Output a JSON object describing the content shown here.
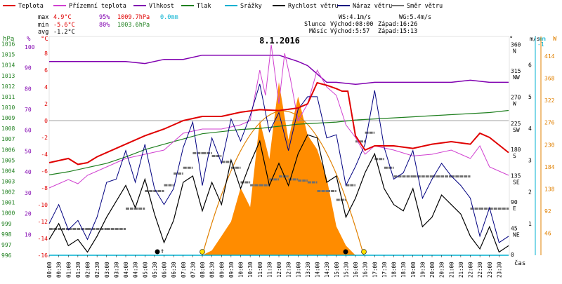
{
  "legend": [
    {
      "label": "Teplota",
      "color": "#e00000"
    },
    {
      "label": "Přízemní teplota",
      "color": "#d040d0"
    },
    {
      "label": "Vlhkost",
      "color": "#8000b0"
    },
    {
      "label": "Tlak",
      "color": "#208020"
    },
    {
      "label": "Srážky",
      "color": "#00b0d0"
    },
    {
      "label": "Rychlost větru",
      "color": "#000000"
    },
    {
      "label": "Náraz větru",
      "color": "#000080"
    },
    {
      "label": "Směr větru",
      "color": "#707070"
    }
  ],
  "stats": {
    "max_label": "max",
    "max_temp": "4.9°C",
    "max_hum": "95%",
    "max_press": "1009.7hPa",
    "max_rain": "0.0mm",
    "min_label": "min",
    "min_temp": "-5.6°C",
    "min_hum": "80%",
    "min_press": "1003.6hPa",
    "avg_label": "avg",
    "avg_temp": "-1.2°C"
  },
  "wind_info": {
    "ws": "WS:4.1m/s",
    "wg": "WG:5.4m/s"
  },
  "sun": {
    "label": "Slunce",
    "rise": "Východ:08:00",
    "set": "Západ:16:26"
  },
  "moon": {
    "label": "Měsíc",
    "rise": "Východ:5:57",
    "set": "Západ:15:13"
  },
  "date": "8.1.2016",
  "axes": {
    "hpa_unit": "hPa",
    "pct_unit": "%",
    "c_unit": "°C",
    "deg_unit": "°",
    "ms_unit": "m/s",
    "mm_unit": "mm",
    "w_unit": "W",
    "time_label": "čas",
    "hpa_ticks": [
      "1016",
      "1015",
      "1014",
      "1013",
      "1012",
      "1011",
      "1010",
      "1009",
      "1008",
      "1007",
      "1006",
      "1005",
      "1004",
      "1003",
      "1002",
      "1001",
      "1000",
      "999",
      "998",
      "997",
      "996"
    ],
    "pct_ticks": [
      "100",
      "90",
      "80",
      "70",
      "60",
      "50",
      "40",
      "30",
      "20",
      "10"
    ],
    "c_ticks": [
      "8",
      "6",
      "4",
      "2",
      "0",
      "-2",
      "-4",
      "-6",
      "-8",
      "-10",
      "-12",
      "-14",
      "-16"
    ],
    "deg_ticks": [
      {
        "deg": "360",
        "dir": "N"
      },
      {
        "deg": "315",
        "dir": "NW"
      },
      {
        "deg": "270",
        "dir": "W"
      },
      {
        "deg": "225",
        "dir": "SW"
      },
      {
        "deg": "180",
        "dir": "S"
      },
      {
        "deg": "135",
        "dir": "SE"
      },
      {
        "deg": "90",
        "dir": "E"
      },
      {
        "deg": "45",
        "dir": "NE"
      },
      {
        "deg": "0",
        "dir": ""
      }
    ],
    "ms_ticks": [
      "6",
      "5",
      "4",
      "3",
      "2",
      "1"
    ],
    "w_ticks": [
      "414",
      "368",
      "322",
      "276",
      "230",
      "184",
      "138",
      "92",
      "46"
    ],
    "rain_top": "-1",
    "time_ticks": [
      "00:00",
      "00:30",
      "01:00",
      "01:30",
      "02:00",
      "02:30",
      "03:00",
      "03:30",
      "04:00",
      "04:30",
      "05:00",
      "05:30",
      "06:00",
      "06:30",
      "07:00",
      "07:30",
      "08:00",
      "08:30",
      "09:00",
      "09:30",
      "10:00",
      "10:30",
      "11:00",
      "11:30",
      "12:00",
      "12:30",
      "13:00",
      "13:30",
      "14:00",
      "14:30",
      "15:00",
      "15:30",
      "16:00",
      "16:30",
      "17:00",
      "17:30",
      "18:00",
      "18:30",
      "19:00",
      "19:30",
      "20:00",
      "20:30",
      "21:00",
      "21:30",
      "22:00",
      "22:30",
      "23:00",
      "23:30"
    ]
  },
  "chart_data": {
    "type": "line",
    "title": "8.1.2016",
    "x_unit": "hours",
    "series": [
      {
        "name": "Teplota",
        "unit": "°C",
        "x": [
          0,
          1,
          1.5,
          2,
          2.5,
          3,
          4,
          5,
          6,
          7,
          8,
          9,
          10,
          11,
          12,
          13,
          13.5,
          14,
          14.5,
          15,
          15.3,
          15.6,
          16,
          16.5,
          17,
          18,
          19,
          20,
          21,
          22,
          22.5,
          23,
          24
        ],
        "values": [
          -5,
          -4.5,
          -5.2,
          -5,
          -4.3,
          -3.8,
          -2.8,
          -1.8,
          -1,
          0,
          0.5,
          0.5,
          1,
          1.3,
          1.2,
          1.5,
          2,
          4.5,
          4.2,
          3.8,
          3.5,
          3.5,
          -1.8,
          -3.5,
          -3,
          -3,
          -3.3,
          -2.8,
          -2.5,
          -2.8,
          -1.5,
          -2,
          -3.8
        ]
      },
      {
        "name": "Přízemní teplota",
        "unit": "°C",
        "x": [
          0,
          1,
          1.5,
          2,
          3,
          4,
          5,
          6,
          6.5,
          7,
          8,
          9,
          10,
          10.5,
          11,
          11.3,
          11.6,
          12,
          12.3,
          12.6,
          13,
          13.5,
          14,
          14.5,
          15,
          15.5,
          16,
          16.5,
          17,
          18,
          19,
          20,
          21,
          22,
          22.5,
          23,
          24
        ],
        "values": [
          -8,
          -7,
          -7.5,
          -6.5,
          -5.5,
          -4.5,
          -4,
          -3.5,
          -2.5,
          -1.5,
          -1,
          -1,
          -0.5,
          0,
          6,
          3,
          9,
          2,
          8,
          5,
          0,
          2,
          6,
          4,
          3,
          -0.5,
          -2,
          -4,
          -3,
          -3.5,
          -4.2,
          -4,
          -3.5,
          -4.5,
          -3,
          -5.5,
          -6.5
        ]
      },
      {
        "name": "Vlhkost",
        "unit": "%",
        "x": [
          0,
          1,
          2,
          3,
          4,
          5,
          6,
          7,
          8,
          9,
          10,
          11,
          12,
          13,
          13.5,
          14,
          14.5,
          15,
          16,
          17,
          18,
          19,
          20,
          21,
          22,
          23,
          24
        ],
        "values": [
          93,
          93,
          93,
          93,
          93,
          92,
          94,
          94,
          96,
          96,
          96,
          96,
          96,
          93,
          91,
          87,
          83,
          83,
          82,
          83,
          83,
          83,
          83,
          83,
          84,
          83,
          83
        ]
      },
      {
        "name": "Tlak",
        "unit": "hPa",
        "x": [
          0,
          1,
          2,
          3,
          4,
          5,
          6,
          7,
          8,
          9,
          10,
          11,
          12,
          13,
          14,
          15,
          16,
          17,
          18,
          19,
          20,
          21,
          22,
          23,
          24
        ],
        "values": [
          1003.6,
          1003.9,
          1004.3,
          1004.7,
          1005.3,
          1006,
          1006.5,
          1007,
          1007.5,
          1007.7,
          1007.9,
          1008,
          1008.2,
          1008.4,
          1008.5,
          1008.6,
          1008.8,
          1008.9,
          1009,
          1009.1,
          1009.2,
          1009.3,
          1009.4,
          1009.5,
          1009.7
        ]
      },
      {
        "name": "Rychlost větru",
        "unit": "m/s",
        "x": [
          0,
          0.5,
          1,
          1.5,
          2,
          2.5,
          3,
          3.5,
          4,
          4.5,
          5,
          5.5,
          6,
          6.5,
          7,
          7.5,
          8,
          8.5,
          9,
          9.5,
          10,
          10.5,
          11,
          11.5,
          12,
          12.5,
          13,
          13.5,
          14,
          14.5,
          15,
          15.5,
          16,
          16.5,
          17,
          17.5,
          18,
          18.5,
          19,
          19.5,
          20,
          20.5,
          21,
          21.5,
          22,
          22.5,
          23,
          23.5,
          24
        ],
        "values": [
          0.5,
          1,
          0.3,
          0.5,
          0.1,
          0.6,
          1.2,
          1.7,
          2.2,
          1.5,
          2.4,
          1.3,
          0.4,
          1.1,
          2.3,
          2.5,
          1.4,
          2.3,
          1.6,
          3,
          2.1,
          2.9,
          3.6,
          2.2,
          2.9,
          2.2,
          3.2,
          3.8,
          3.7,
          2.3,
          2.5,
          1.2,
          1.8,
          2.6,
          3.2,
          2.1,
          1.6,
          1.4,
          2.1,
          0.9,
          1.2,
          1.9,
          1.6,
          1.3,
          0.6,
          0.2,
          0.9,
          0.1,
          0.3
        ]
      },
      {
        "name": "Náraz větru",
        "unit": "m/s",
        "x": [
          0,
          0.5,
          1,
          1.5,
          2,
          2.5,
          3,
          3.5,
          4,
          4.5,
          5,
          5.5,
          6,
          6.5,
          7,
          7.5,
          8,
          8.5,
          9,
          9.5,
          10,
          10.5,
          11,
          11.5,
          12,
          12.5,
          13,
          13.5,
          14,
          14.5,
          15,
          15.5,
          16,
          16.5,
          17,
          17.5,
          18,
          18.5,
          19,
          19.5,
          20,
          20.5,
          21,
          21.5,
          22,
          22.5,
          23,
          23.5,
          24
        ],
        "values": [
          1,
          1.6,
          0.8,
          1.1,
          0.5,
          1.2,
          2.3,
          2.4,
          3.3,
          2.3,
          3.5,
          2.1,
          1.6,
          2.1,
          3.4,
          4.2,
          2.2,
          3.7,
          2.9,
          4.3,
          3.6,
          4.4,
          5.4,
          3.9,
          4.5,
          3.3,
          4.6,
          5,
          5,
          3.7,
          3.8,
          2.2,
          2.8,
          3.5,
          5.2,
          3.4,
          2.4,
          2.6,
          3.3,
          1.8,
          2.4,
          2.9,
          2.5,
          2.2,
          1.8,
          0.6,
          1.5,
          0.4,
          0.6
        ]
      },
      {
        "name": "Směr větru",
        "unit": "°",
        "x": [
          0,
          1,
          2,
          3,
          4,
          5,
          6,
          6.5,
          7,
          7.5,
          8,
          8.5,
          9,
          9.5,
          10,
          10.5,
          11,
          11.5,
          12,
          12.5,
          13,
          13.5,
          14,
          14.5,
          15,
          15.5,
          16,
          16.5,
          17,
          17.5,
          18,
          19,
          20,
          21,
          22,
          22.5,
          23,
          24
        ],
        "values": [
          45,
          45,
          45,
          45,
          80,
          110,
          120,
          140,
          150,
          175,
          175,
          170,
          160,
          150,
          125,
          120,
          120,
          130,
          135,
          130,
          128,
          125,
          110,
          110,
          95,
          120,
          195,
          210,
          165,
          150,
          135,
          135,
          135,
          135,
          80,
          80,
          80,
          80
        ]
      },
      {
        "name": "Sluneční záření",
        "unit": "W",
        "x": [
          8,
          8.5,
          9,
          9.5,
          10,
          10.5,
          11,
          11.5,
          12,
          12.5,
          13,
          13.5,
          14,
          14.5,
          15,
          15.5,
          16
        ],
        "values": [
          0,
          10,
          40,
          70,
          140,
          100,
          280,
          200,
          360,
          240,
          330,
          250,
          220,
          160,
          60,
          20,
          0
        ]
      }
    ],
    "axes": {
      "temperature": {
        "unit": "°C",
        "range": [
          -16,
          10
        ]
      },
      "humidity": {
        "unit": "%",
        "range": [
          0,
          105
        ]
      },
      "pressure": {
        "unit": "hPa",
        "range": [
          996,
          1016.7
        ]
      },
      "wind_direction": {
        "unit": "°",
        "range": [
          0,
          375
        ]
      },
      "wind_speed": {
        "unit": "m/s",
        "range": [
          0,
          6.9
        ]
      },
      "radiation": {
        "unit": "W",
        "range": [
          0,
          455
        ]
      }
    },
    "reference_lines": [
      {
        "axis": "temperature",
        "value": 0,
        "color": "#808080"
      }
    ]
  }
}
